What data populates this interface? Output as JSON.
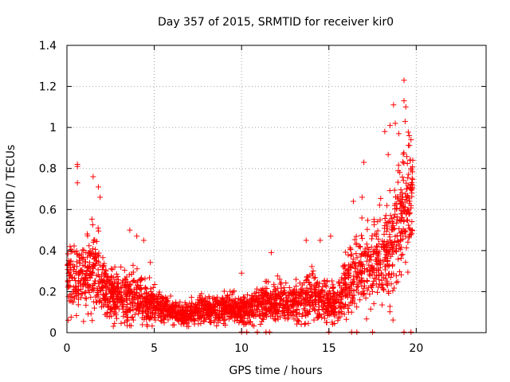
{
  "chart_data": {
    "type": "scatter",
    "title": "Day 357 of 2015, SRMTID for receiver kir0",
    "xlabel": "GPS time / hours",
    "ylabel": "SRMTID / TECUs",
    "xlim": [
      0,
      24
    ],
    "ylim": [
      0,
      1.4
    ],
    "xticks": [
      0,
      5,
      10,
      15,
      20
    ],
    "yticks": [
      0,
      0.2,
      0.4,
      0.6,
      0.8,
      1,
      1.2,
      1.4
    ],
    "ytick_labels": [
      "0",
      "0.2",
      "0.4",
      "0.6",
      "0.8",
      "1",
      "1.2",
      "1.4"
    ],
    "grid": true,
    "marker": "+",
    "color": "#ff0000",
    "series_name": "SRMTID kir0",
    "envelope": {
      "description": "approximate median and spread of the point cloud by hour",
      "x": [
        0.0,
        0.5,
        1.0,
        1.5,
        2.0,
        2.5,
        3.0,
        3.5,
        4.0,
        4.5,
        5.0,
        5.5,
        6.0,
        6.5,
        7.0,
        7.5,
        8.0,
        8.5,
        9.0,
        9.5,
        10.0,
        10.5,
        11.0,
        11.5,
        12.0,
        12.5,
        13.0,
        13.5,
        14.0,
        14.5,
        15.0,
        15.5,
        16.0,
        16.5,
        17.0,
        17.5,
        18.0,
        18.5,
        19.0,
        19.5,
        19.8
      ],
      "median": [
        0.25,
        0.27,
        0.28,
        0.3,
        0.25,
        0.2,
        0.18,
        0.17,
        0.17,
        0.15,
        0.14,
        0.12,
        0.11,
        0.09,
        0.09,
        0.1,
        0.11,
        0.12,
        0.12,
        0.12,
        0.11,
        0.12,
        0.14,
        0.14,
        0.15,
        0.14,
        0.14,
        0.16,
        0.18,
        0.16,
        0.14,
        0.15,
        0.22,
        0.28,
        0.32,
        0.33,
        0.35,
        0.4,
        0.55,
        0.65,
        0.7
      ],
      "spread": [
        0.12,
        0.13,
        0.13,
        0.14,
        0.12,
        0.09,
        0.08,
        0.08,
        0.08,
        0.07,
        0.06,
        0.05,
        0.04,
        0.04,
        0.04,
        0.04,
        0.05,
        0.05,
        0.05,
        0.05,
        0.05,
        0.06,
        0.06,
        0.06,
        0.07,
        0.06,
        0.06,
        0.08,
        0.09,
        0.08,
        0.07,
        0.08,
        0.1,
        0.12,
        0.13,
        0.14,
        0.15,
        0.18,
        0.22,
        0.2,
        0.18
      ]
    },
    "outliers": [
      {
        "x": 0.6,
        "y": 0.82
      },
      {
        "x": 0.6,
        "y": 0.81
      },
      {
        "x": 0.6,
        "y": 0.73
      },
      {
        "x": 1.5,
        "y": 0.76
      },
      {
        "x": 1.8,
        "y": 0.71
      },
      {
        "x": 1.9,
        "y": 0.66
      },
      {
        "x": 3.6,
        "y": 0.5
      },
      {
        "x": 4.0,
        "y": 0.47
      },
      {
        "x": 4.4,
        "y": 0.45
      },
      {
        "x": 10.0,
        "y": 0.29
      },
      {
        "x": 11.7,
        "y": 0.39
      },
      {
        "x": 13.7,
        "y": 0.45
      },
      {
        "x": 14.5,
        "y": 0.45
      },
      {
        "x": 15.1,
        "y": 0.47
      },
      {
        "x": 16.4,
        "y": 0.64
      },
      {
        "x": 16.9,
        "y": 0.66
      },
      {
        "x": 17.0,
        "y": 0.83
      },
      {
        "x": 18.2,
        "y": 0.98
      },
      {
        "x": 18.5,
        "y": 1.01
      },
      {
        "x": 18.7,
        "y": 1.11
      },
      {
        "x": 18.8,
        "y": 1.02
      },
      {
        "x": 19.0,
        "y": 0.97
      },
      {
        "x": 19.3,
        "y": 1.23
      },
      {
        "x": 19.3,
        "y": 1.13
      },
      {
        "x": 19.4,
        "y": 1.1
      },
      {
        "x": 19.6,
        "y": 0.96
      },
      {
        "x": 19.7,
        "y": 0.94
      },
      {
        "x": 19.7,
        "y": 0.8
      },
      {
        "x": 19.8,
        "y": 0.84
      }
    ],
    "zeros_x": [
      10.0,
      10.3,
      10.9,
      11.4,
      11.6,
      15.0,
      16.3,
      16.6,
      17.5,
      19.3,
      19.7
    ]
  }
}
